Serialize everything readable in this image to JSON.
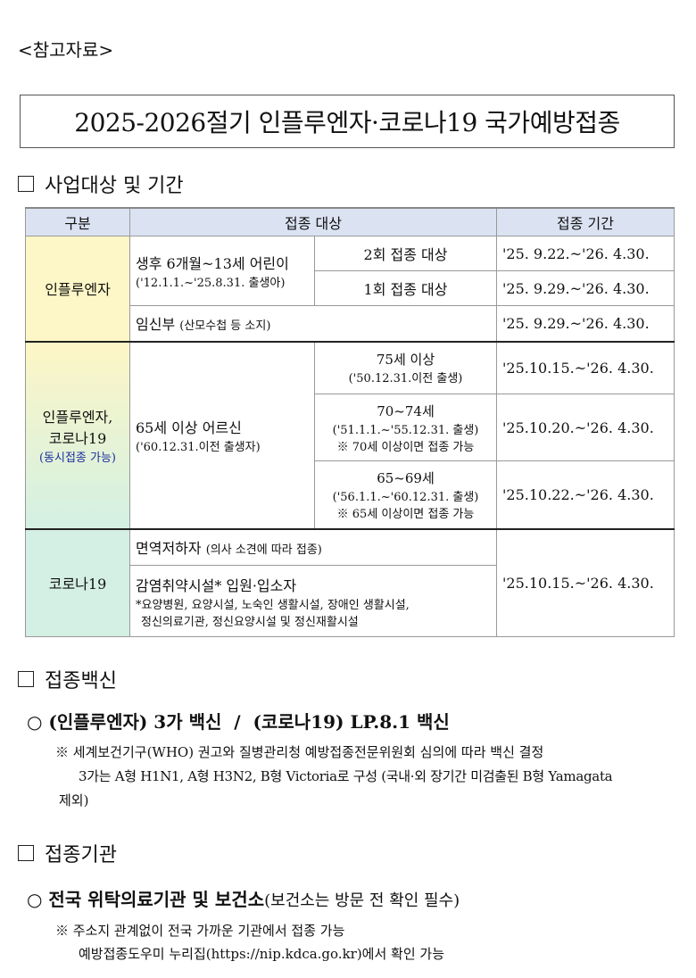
{
  "ref_label": "<참고자료>",
  "title": "2025-2026절기 인플루엔자·코로나19 국가예방접종",
  "section1": {
    "label": "사업대상 및 기간"
  },
  "table": {
    "headers": [
      "구분",
      "접종 대상",
      "접종 기간"
    ],
    "flu": {
      "category": "인플루엔자",
      "child": "생후 6개월~13세 어린이",
      "child_sub": "('12.1.1.~'25.8.31. 출생아)",
      "two": "2회 접종 대상",
      "two_period": "'25. 9.22.~'26. 4.30.",
      "one": "1회 접종 대상",
      "one_period": "'25. 9.29.~'26. 4.30.",
      "preg": "임신부",
      "preg_sub": "(산모수첩 등 소지)",
      "preg_period": "'25. 9.29.~'26. 4.30."
    },
    "both": {
      "category1": "인플루엔자,",
      "category2": "코로나19",
      "category_note": "(동시접종 가능)",
      "elder": "65세 이상 어르신",
      "elder_sub": "('60.12.31.이전 출생자)",
      "g75": "75세 이상",
      "g75_sub": "('50.12.31.이전 출생)",
      "g75_period": "'25.10.15.~'26. 4.30.",
      "g70": "70~74세",
      "g70_sub": "('51.1.1.~'55.12.31. 출생)",
      "g70_note": "※ 70세 이상이면 접종 가능",
      "g70_period": "'25.10.20.~'26. 4.30.",
      "g65": "65~69세",
      "g65_sub": "('56.1.1.~'60.12.31. 출생)",
      "g65_note": "※ 65세 이상이면 접종 가능",
      "g65_period": "'25.10.22.~'26. 4.30."
    },
    "covid": {
      "category": "코로나19",
      "immuno": "면역저하자",
      "immuno_sub": "(의사 소견에 따라 접종)",
      "facility": "감염취약시설* 입원·입소자",
      "facility_note1": "*요양병원, 요양시설, 노숙인 생활시설, 장애인 생활시설,",
      "facility_note2": "정신의료기관, 정신요양시설 및 정신재활시설",
      "period": "'25.10.15.~'26. 4.30."
    }
  },
  "section2": {
    "label": "접종백신",
    "bullet": "○ (인플루엔자) 3가 백신  /  (코로나19) LP.8.1 백신",
    "note1": "※ 세계보건기구(WHO) 권고와 질병관리청 예방접종전문위원회 심의에 따라 백신 결정",
    "note2": "3가는 A형 H1N1, A형 H3N2, B형 Victoria로 구성 (국내·외 장기간 미검출된 B형 Yamagata",
    "note3": "제외)"
  },
  "section3": {
    "label": "접종기관",
    "bullet_bold": "○ 전국 위탁의료기관 및 보건소",
    "bullet_rest": "(보건소는 방문 전 확인 필수)",
    "note1": "※ 주소지 관계없이 전국 가까운 기관에서 접종 가능",
    "note2": "예방접종도우미 누리집(https://nip.kdca.go.kr)에서 확인 가능"
  }
}
